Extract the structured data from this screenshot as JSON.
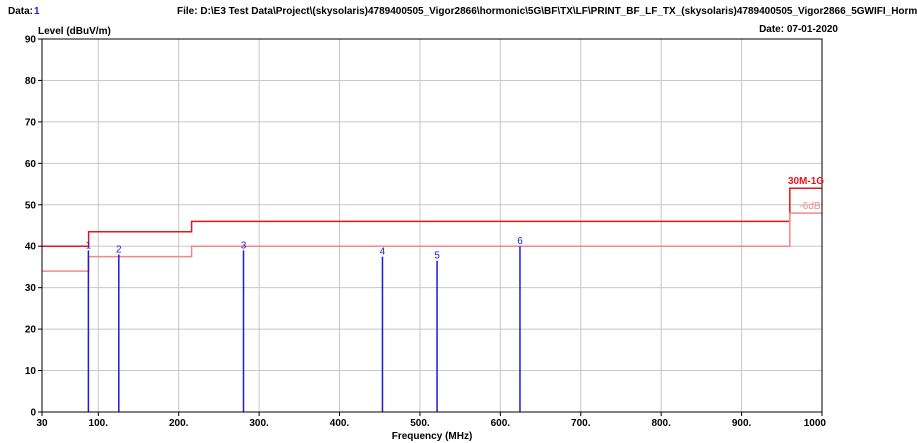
{
  "header": {
    "data_label": "Data:",
    "data_value": "1",
    "file": "File: D:\\E3 Test Data\\Project\\(skysolaris)4789400505_Vigor2866\\hormonic\\5G\\BF\\TX\\LF\\PRINT_BF_LF_TX_(skysolaris)4789400505_Vigor2866_5GWIFI_Horm",
    "date": "Date: 07-01-2020"
  },
  "chart_data": {
    "type": "line",
    "title": "",
    "ylabel": "Level (dBuV/m)",
    "xlabel": "Frequency (MHz)",
    "xlim": [
      30,
      1000
    ],
    "ylim": [
      0,
      90
    ],
    "grid": true,
    "x_ticks": [
      {
        "value": 30,
        "label": "30"
      },
      {
        "value": 100,
        "label": "100."
      },
      {
        "value": 200,
        "label": "200."
      },
      {
        "value": 300,
        "label": "300."
      },
      {
        "value": 400,
        "label": "400."
      },
      {
        "value": 500,
        "label": "500."
      },
      {
        "value": 600,
        "label": "600."
      },
      {
        "value": 700,
        "label": "700."
      },
      {
        "value": 800,
        "label": "800."
      },
      {
        "value": 900,
        "label": "900."
      },
      {
        "value": 1000,
        "label": "1000"
      }
    ],
    "y_ticks": [
      {
        "value": 0,
        "label": "0"
      },
      {
        "value": 10,
        "label": "10"
      },
      {
        "value": 20,
        "label": "20"
      },
      {
        "value": 30,
        "label": "30"
      },
      {
        "value": 40,
        "label": "40"
      },
      {
        "value": 50,
        "label": "50"
      },
      {
        "value": 60,
        "label": "60"
      },
      {
        "value": 70,
        "label": "70"
      },
      {
        "value": 80,
        "label": "80"
      },
      {
        "value": 90,
        "label": "90"
      }
    ],
    "limit_lines": [
      {
        "name": "30M-1G",
        "color": "#e8141c",
        "points": [
          [
            30,
            40
          ],
          [
            88,
            40
          ],
          [
            88,
            43.5
          ],
          [
            216,
            43.5
          ],
          [
            216,
            46
          ],
          [
            960,
            46
          ],
          [
            960,
            54
          ],
          [
            1000,
            54
          ]
        ]
      },
      {
        "name": "-6dB",
        "color": "#f08a8a",
        "points": [
          [
            30,
            34
          ],
          [
            88,
            34
          ],
          [
            88,
            37.5
          ],
          [
            216,
            37.5
          ],
          [
            216,
            40
          ],
          [
            960,
            40
          ],
          [
            960,
            48
          ],
          [
            1000,
            48
          ]
        ]
      }
    ],
    "markers": [
      {
        "label": "1",
        "x": 87.7,
        "y": 39
      },
      {
        "label": "2",
        "x": 125.5,
        "y": 38
      },
      {
        "label": "3",
        "x": 280.6,
        "y": 39
      },
      {
        "label": "4",
        "x": 453.4,
        "y": 37.5
      },
      {
        "label": "5",
        "x": 521.3,
        "y": 36.5
      },
      {
        "label": "6",
        "x": 624.4,
        "y": 40
      }
    ],
    "colors": {
      "marker": "#1c1cd8",
      "axis": "#000000",
      "grid": "#c8c8c8"
    }
  }
}
